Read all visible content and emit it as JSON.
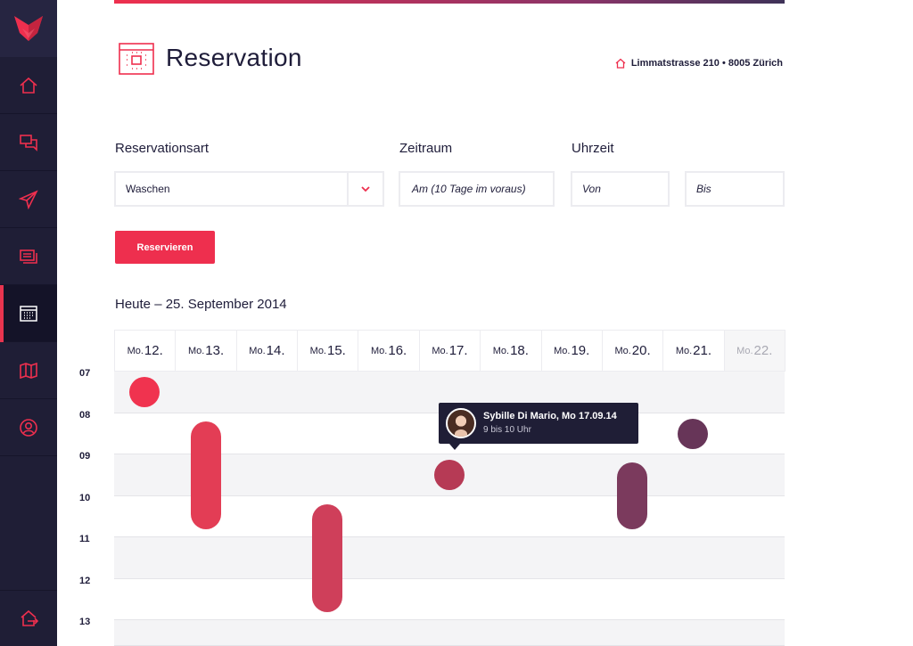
{
  "colors": {
    "accent": "#ee2f4e",
    "sidebar": "#1f1e36",
    "text": "#1f1d3a"
  },
  "sidebar": {
    "logo_icon": "fox-logo-icon",
    "items": [
      {
        "icon": "home-icon",
        "active": false
      },
      {
        "icon": "chat-bubbles-icon",
        "active": false
      },
      {
        "icon": "paper-plane-icon",
        "active": false
      },
      {
        "icon": "stacked-cards-icon",
        "active": false
      },
      {
        "icon": "calendar-icon",
        "active": true
      },
      {
        "icon": "map-icon",
        "active": false
      },
      {
        "icon": "user-profile-icon",
        "active": false
      }
    ],
    "logout_icon": "logout-house-icon"
  },
  "header": {
    "title": "Reservation",
    "title_icon": "calendar-icon",
    "address": "Limmatstrasse 210 • 8005 Zürich",
    "address_icon": "home-icon"
  },
  "form": {
    "type_label": "Reservationsart",
    "type_value": "Waschen",
    "period_label": "Zeitraum",
    "period_value": "Am (10 Tage im voraus)",
    "time_label": "Uhrzeit",
    "from_placeholder": "Von",
    "to_placeholder": "Bis",
    "reserve_button": "Reservieren"
  },
  "calendar": {
    "heading": "Heute – 25. September 2014",
    "days": [
      {
        "prefix": "Mo.",
        "num": "12."
      },
      {
        "prefix": "Mo.",
        "num": "13."
      },
      {
        "prefix": "Mo.",
        "num": "14."
      },
      {
        "prefix": "Mo.",
        "num": "15."
      },
      {
        "prefix": "Mo.",
        "num": "16."
      },
      {
        "prefix": "Mo.",
        "num": "17."
      },
      {
        "prefix": "Mo.",
        "num": "18."
      },
      {
        "prefix": "Mo.",
        "num": "19."
      },
      {
        "prefix": "Mo.",
        "num": "20."
      },
      {
        "prefix": "Mo.",
        "num": "21."
      },
      {
        "prefix": "Mo.",
        "num": "22."
      }
    ],
    "hours": [
      "07",
      "08",
      "09",
      "10",
      "11",
      "12",
      "13"
    ],
    "events": [
      {
        "day": 0,
        "start": 7.5,
        "end": 7.5,
        "color": "#f0334f"
      },
      {
        "day": 1,
        "start": 8.2,
        "end": 10.8,
        "color": "#e33d55"
      },
      {
        "day": 3,
        "start": 10.2,
        "end": 12.8,
        "color": "#cf3f5a"
      },
      {
        "day": 5,
        "start": 9.5,
        "end": 9.5,
        "color": "#b63a55"
      },
      {
        "day": 8,
        "start": 9.2,
        "end": 10.8,
        "color": "#7b3a5d"
      },
      {
        "day": 9,
        "start": 8.5,
        "end": 8.5,
        "color": "#673558"
      }
    ],
    "tooltip": {
      "name": "Sybille Di Mario, Mo 17.09.14",
      "time": "9 bis 10 Uhr",
      "avatar": "avatar"
    }
  }
}
